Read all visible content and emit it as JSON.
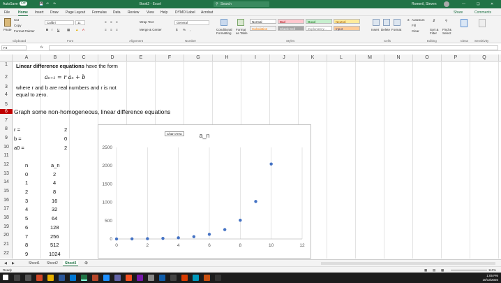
{
  "titlebar": {
    "autosave": "AutoSave",
    "autosave_state": "Off",
    "filename": "Book2 - Excel",
    "search": "Search",
    "user": "Romeril, Steven"
  },
  "ribbon_tabs": [
    "File",
    "Home",
    "Insert",
    "Draw",
    "Page Layout",
    "Formulas",
    "Data",
    "Review",
    "View",
    "Help",
    "DYMO Label",
    "Acrobat"
  ],
  "active_tab": "Home",
  "share": "Share",
  "comments": "Comments",
  "ribbon": {
    "clipboard": {
      "paste": "Paste",
      "cut": "Cut",
      "copy": "Copy",
      "format_painter": "Format Painter",
      "label": "Clipboard"
    },
    "font": {
      "name": "Calibri",
      "size": "11",
      "label": "Font"
    },
    "alignment": {
      "wrap": "Wrap Text",
      "merge": "Merge & Center",
      "label": "Alignment"
    },
    "number": {
      "format": "General",
      "label": "Number"
    },
    "styles": {
      "cond": "Conditional Formatting",
      "table": "Format as Table",
      "normal": "Normal",
      "bad": "Bad",
      "good": "Good",
      "neutral": "Neutral",
      "calculation": "Calculation",
      "check_cell": "Check Cell",
      "explanatory": "Explanatory...",
      "input": "Input",
      "label": "Styles"
    },
    "cells": {
      "insert": "Insert",
      "delete": "Delete",
      "format": "Format",
      "label": "Cells"
    },
    "editing": {
      "autosum": "AutoSum",
      "fill": "Fill",
      "clear": "Clear",
      "sort": "Sort & Filter",
      "find": "Find & Select",
      "label": "Editing"
    },
    "ideas": {
      "label": "Ideas"
    },
    "sensitivity": {
      "label": "Sensitivity"
    }
  },
  "namebox": "F3",
  "fx": "fx",
  "columns": [
    "A",
    "B",
    "C",
    "D",
    "E",
    "F",
    "G",
    "H",
    "I",
    "J",
    "K",
    "L",
    "M",
    "N",
    "O",
    "P",
    "Q"
  ],
  "rows": [
    "1",
    "2",
    "3",
    "4",
    "5",
    "6",
    "7",
    "8",
    "9",
    "10",
    "11",
    "12",
    "13",
    "14",
    "15",
    "16",
    "17",
    "18",
    "19",
    "20",
    "21",
    "22"
  ],
  "cells": {
    "a1_bold": "Linear difference equations",
    "a1_rest": " have the form",
    "formula": "aₙ₊₁ = r aₙ + b",
    "a3": "where r and b are real numbers and r is not",
    "a4": "equal to zero.",
    "a6": "Graph some non-homogeneous, linear difference equations",
    "a8": "r =",
    "b8": "2",
    "a9": "b =",
    "b9": "0",
    "a10": "a0 =",
    "b10": "2",
    "a12": "n",
    "b12": "a_n"
  },
  "table": {
    "n": [
      "0",
      "1",
      "2",
      "3",
      "4",
      "5",
      "6",
      "7",
      "8",
      "9"
    ],
    "an": [
      "2",
      "4",
      "8",
      "16",
      "32",
      "64",
      "128",
      "256",
      "512",
      "1024"
    ]
  },
  "chart_tooltip": "Chart Area",
  "chart_data": {
    "type": "scatter",
    "title": "a_n",
    "x": [
      0,
      1,
      2,
      3,
      4,
      5,
      6,
      7,
      8,
      9,
      10
    ],
    "y": [
      2,
      4,
      8,
      16,
      32,
      64,
      128,
      256,
      512,
      1024,
      2048
    ],
    "xlim": [
      0,
      12
    ],
    "ylim": [
      0,
      2500
    ],
    "xticks": [
      "0",
      "2",
      "4",
      "6",
      "8",
      "10",
      "12"
    ],
    "yticks": [
      "0",
      "500",
      "1000",
      "1500",
      "2000",
      "2500"
    ],
    "grid": "vertical",
    "color": "#4472c4"
  },
  "sheets": [
    "Sheet1",
    "Sheet2",
    "Sheet3"
  ],
  "active_sheet": "Sheet3",
  "status": {
    "ready": "Ready",
    "zoom": "110%"
  },
  "clock": {
    "time": "1:05 PM",
    "date": "10/13/2020"
  }
}
